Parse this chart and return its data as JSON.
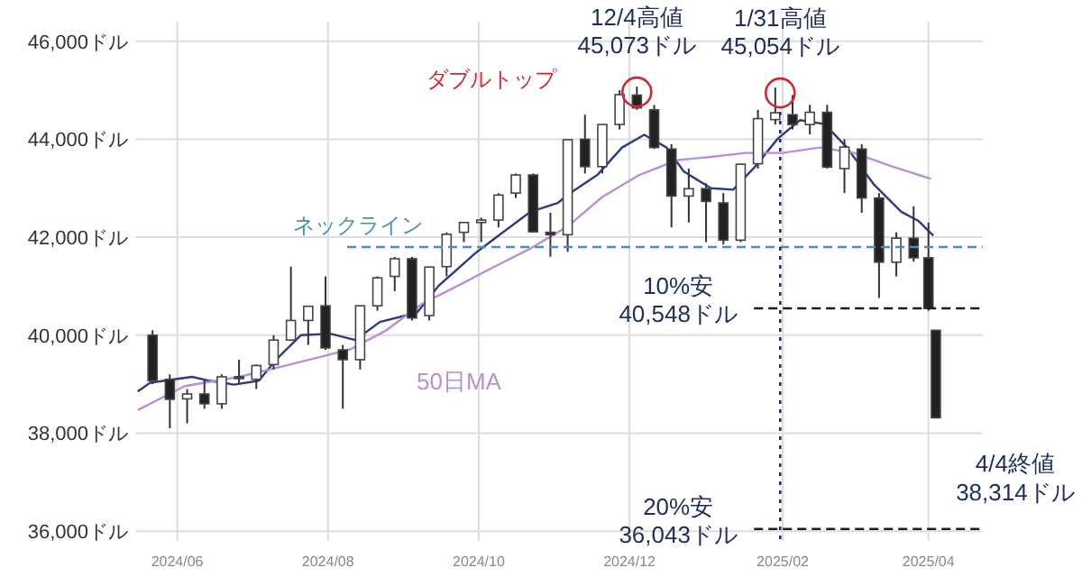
{
  "chart_data": {
    "type": "candlestick",
    "x": [
      "2024-05-22",
      "2024-05-29",
      "2024-06-05",
      "2024-06-12",
      "2024-06-19",
      "2024-06-26",
      "2024-07-03",
      "2024-07-10",
      "2024-07-17",
      "2024-07-24",
      "2024-07-31",
      "2024-08-07",
      "2024-08-14",
      "2024-08-21",
      "2024-08-28",
      "2024-09-04",
      "2024-09-11",
      "2024-09-18",
      "2024-09-25",
      "2024-10-02",
      "2024-10-09",
      "2024-10-16",
      "2024-10-23",
      "2024-10-30",
      "2024-11-06",
      "2024-11-13",
      "2024-11-20",
      "2024-11-27",
      "2024-12-04",
      "2024-12-11",
      "2024-12-18",
      "2024-12-25",
      "2025-01-01",
      "2025-01-08",
      "2025-01-15",
      "2025-01-22",
      "2025-01-29",
      "2025-02-05",
      "2025-02-12",
      "2025-02-19",
      "2025-02-26",
      "2025-03-05",
      "2025-03-12",
      "2025-03-19",
      "2025-03-26",
      "2025-04-01",
      "2025-04-04"
    ],
    "ohlc": [
      [
        40000,
        40100,
        39000,
        39070
      ],
      [
        39100,
        39200,
        38100,
        38690
      ],
      [
        38700,
        38900,
        38200,
        38800
      ],
      [
        38800,
        39100,
        38500,
        38600
      ],
      [
        38600,
        39200,
        38500,
        39150
      ],
      [
        39150,
        39500,
        39000,
        39120
      ],
      [
        39100,
        39400,
        38900,
        39380
      ],
      [
        39400,
        40000,
        39300,
        39900
      ],
      [
        39900,
        41400,
        39900,
        40300
      ],
      [
        40300,
        40600,
        39800,
        40590
      ],
      [
        40600,
        41200,
        39700,
        39740
      ],
      [
        39700,
        39800,
        38500,
        39500
      ],
      [
        39500,
        40600,
        39300,
        40600
      ],
      [
        40600,
        41200,
        40500,
        41170
      ],
      [
        41200,
        41600,
        40900,
        41560
      ],
      [
        41560,
        41600,
        40300,
        40350
      ],
      [
        40400,
        41400,
        40300,
        41390
      ],
      [
        41400,
        42100,
        41200,
        42060
      ],
      [
        42100,
        42300,
        41900,
        42300
      ],
      [
        42300,
        42400,
        41900,
        42350
      ],
      [
        42350,
        42900,
        42200,
        42860
      ],
      [
        42900,
        43300,
        42800,
        43270
      ],
      [
        43270,
        43300,
        42100,
        42110
      ],
      [
        42100,
        42500,
        41600,
        42050
      ],
      [
        42050,
        44000,
        41700,
        43990
      ],
      [
        44000,
        44500,
        43300,
        43440
      ],
      [
        43440,
        44300,
        43300,
        44300
      ],
      [
        44300,
        45000,
        44200,
        44910
      ],
      [
        44900,
        45073,
        44600,
        44640
      ],
      [
        44600,
        44700,
        43800,
        43830
      ],
      [
        43800,
        43900,
        42200,
        42840
      ],
      [
        42840,
        43400,
        42300,
        42990
      ],
      [
        42990,
        43100,
        41900,
        42730
      ],
      [
        42700,
        42900,
        41850,
        41940
      ],
      [
        41940,
        43500,
        41900,
        43490
      ],
      [
        43500,
        44600,
        43400,
        44420
      ],
      [
        44400,
        45054,
        44300,
        44540
      ],
      [
        44500,
        44900,
        44200,
        44300
      ],
      [
        44300,
        44700,
        44100,
        44550
      ],
      [
        44550,
        44700,
        43400,
        43430
      ],
      [
        43400,
        44000,
        42900,
        43840
      ],
      [
        43800,
        43900,
        42500,
        42800
      ],
      [
        42800,
        42900,
        40760,
        41490
      ],
      [
        41490,
        42100,
        41200,
        41980
      ],
      [
        41980,
        42630,
        41500,
        41580
      ],
      [
        41580,
        42300,
        40500,
        40545
      ],
      [
        40100,
        40100,
        38300,
        38314
      ]
    ],
    "colors": [
      "#222222",
      "#222222",
      "#ffffff",
      "#222222",
      "#ffffff",
      "#222222",
      "#ffffff",
      "#ffffff",
      "#ffffff",
      "#ffffff",
      "#222222",
      "#222222",
      "#ffffff",
      "#ffffff",
      "#ffffff",
      "#222222",
      "#ffffff",
      "#ffffff",
      "#ffffff",
      "#ffffff",
      "#ffffff",
      "#ffffff",
      "#222222",
      "#222222",
      "#ffffff",
      "#222222",
      "#ffffff",
      "#ffffff",
      "#222222",
      "#222222",
      "#222222",
      "#ffffff",
      "#222222",
      "#222222",
      "#ffffff",
      "#ffffff",
      "#ffffff",
      "#222222",
      "#ffffff",
      "#222222",
      "#ffffff",
      "#222222",
      "#222222",
      "#ffffff",
      "#222222",
      "#222222",
      "#222222"
    ],
    "series": [
      {
        "type": "line",
        "color": "#2e3a87",
        "x": [
          "2024-05-16",
          "2024-05-21",
          "2024-06-07",
          "2024-06-14",
          "2024-06-24",
          "2024-07-04",
          "2024-07-11",
          "2024-07-21",
          "2024-08-02",
          "2024-08-12",
          "2024-08-22",
          "2024-09-06",
          "2024-09-15",
          "2024-09-30",
          "2024-10-10",
          "2024-10-22",
          "2024-11-02",
          "2024-11-09",
          "2024-11-18",
          "2024-11-28",
          "2024-12-07",
          "2024-12-16",
          "2024-12-23",
          "2025-01-03",
          "2025-01-12",
          "2025-01-21",
          "2025-01-30",
          "2025-02-08",
          "2025-02-18",
          "2025-02-27",
          "2025-03-10",
          "2025-03-21",
          "2025-03-28",
          "2025-04-03"
        ],
        "values": [
          38850,
          39030,
          39150,
          39070,
          38990,
          39070,
          39500,
          40000,
          40030,
          39900,
          40270,
          40460,
          41020,
          41690,
          42070,
          42520,
          42700,
          42970,
          43270,
          43830,
          44090,
          43830,
          43340,
          43000,
          42970,
          43450,
          44010,
          44390,
          44310,
          43830,
          43070,
          42520,
          42330,
          42030
        ]
      },
      {
        "type": "line",
        "name": "50日MA",
        "color": "#b98fd6",
        "x": [
          "2024-05-16",
          "2024-06-04",
          "2024-06-26",
          "2024-07-11",
          "2024-07-26",
          "2024-08-10",
          "2024-08-24",
          "2024-09-08",
          "2024-09-23",
          "2024-10-07",
          "2024-10-22",
          "2024-11-06",
          "2024-11-20",
          "2024-12-05",
          "2024-12-20",
          "2025-01-03",
          "2025-01-17",
          "2025-02-01",
          "2025-02-16",
          "2025-03-02",
          "2025-03-17",
          "2025-04-02"
        ],
        "values": [
          38470,
          38960,
          39150,
          39330,
          39520,
          39710,
          40080,
          40640,
          41020,
          41390,
          41770,
          42220,
          42820,
          43270,
          43570,
          43640,
          43720,
          43720,
          43830,
          43720,
          43450,
          43190
        ]
      }
    ],
    "xlim": [
      "2024-05-15",
      "2025-04-23"
    ],
    "xticks": [
      {
        "value": "2024-06-01",
        "label": "2024/06"
      },
      {
        "value": "2024-08-01",
        "label": "2024/08"
      },
      {
        "value": "2024-10-01",
        "label": "2024/10"
      },
      {
        "value": "2024-12-01",
        "label": "2024/12"
      },
      {
        "value": "2025-02-01",
        "label": "2025/02"
      },
      {
        "value": "2025-04-01",
        "label": "2025/04"
      }
    ],
    "ylim": [
      35800,
      46400
    ],
    "yticks": [
      {
        "value": 36000,
        "label": "36,000ドル"
      },
      {
        "value": 38000,
        "label": "38,000ドル"
      },
      {
        "value": 40000,
        "label": "40,000ドル"
      },
      {
        "value": 42000,
        "label": "42,000ドル"
      },
      {
        "value": 44000,
        "label": "44,000ドル"
      },
      {
        "value": 46000,
        "label": "46,000ドル"
      }
    ],
    "grid": true,
    "ref_lines": [
      {
        "axis": "y",
        "value": 41800,
        "label": "ネックライン",
        "color": "#4a8fb5",
        "line_style": "dashed"
      },
      {
        "axis": "y",
        "value": 40548,
        "label": "10%安\n40,548ドル",
        "color": "#1a1a2e",
        "line_style": "dashed"
      },
      {
        "axis": "y",
        "value": 36043,
        "label": "20%安\n36,043ドル",
        "color": "#1a1a2e",
        "line_style": "dashed"
      },
      {
        "axis": "x",
        "value": "2025-01-31",
        "color": "#1f2d6b",
        "line_style": "dotted"
      }
    ],
    "annotations": [
      {
        "text": "12/4高値\n45,073ドル",
        "x": "2024-12-04",
        "y": 45073
      },
      {
        "text": "1/31高値\n45,054ドル",
        "x": "2025-01-31",
        "y": 45054
      },
      {
        "text": "4/4終値\n38,314ドル",
        "x": "2025-04-04",
        "y": 38314
      },
      "ダブルトップ"
    ]
  }
}
